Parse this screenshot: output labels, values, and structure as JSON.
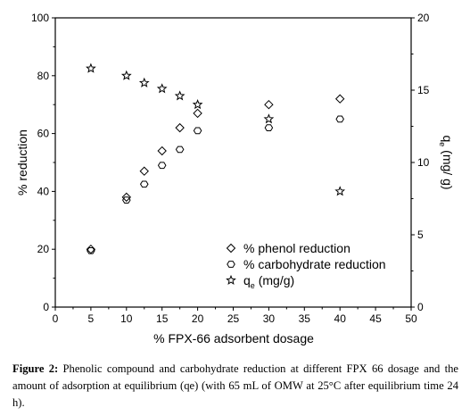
{
  "chart_data": {
    "type": "scatter",
    "x": [
      5,
      10,
      12.5,
      15,
      17.5,
      20,
      30,
      40
    ],
    "xlabel": "% FPX-66 adsorbent dosage",
    "ylabel": "% reduction",
    "y2label_main": "q",
    "y2label_sub": "e",
    "y2label_rest": " (mg/ g)",
    "xlim": [
      0,
      50
    ],
    "ylim": [
      0,
      100
    ],
    "y2lim": [
      0,
      20
    ],
    "xticks": [
      "0",
      "5",
      "10",
      "15",
      "20",
      "25",
      "30",
      "35",
      "40",
      "45",
      "50"
    ],
    "yticks": [
      "0",
      "20",
      "40",
      "60",
      "80",
      "100"
    ],
    "y2ticks": [
      "0",
      "5",
      "10",
      "15",
      "20"
    ],
    "grid": false,
    "legend_position": "bottom-right",
    "series": [
      {
        "name": "% phenol reduction",
        "marker": "diamond",
        "axis": "left",
        "values": [
          20,
          38,
          47,
          54,
          62,
          67,
          70,
          72
        ]
      },
      {
        "name": "% carbohydrate reduction",
        "marker": "hexagon",
        "axis": "left",
        "values": [
          19.5,
          37,
          42.5,
          49,
          54.5,
          61,
          62,
          65
        ]
      },
      {
        "name": "q",
        "name_sub": "e",
        "name_rest": " (mg/g)",
        "marker": "star",
        "axis": "right",
        "values": [
          16.5,
          16,
          15.5,
          15.1,
          14.6,
          14,
          13,
          8
        ]
      }
    ]
  },
  "caption": {
    "label": "Figure 2:",
    "text": " Phenolic compound and carbohydrate reduction at different FPX 66 dosage and the amount of adsorption at equilibrium (qe) (with 65 mL of OMW at 25°C after equilibrium time 24 h)."
  }
}
